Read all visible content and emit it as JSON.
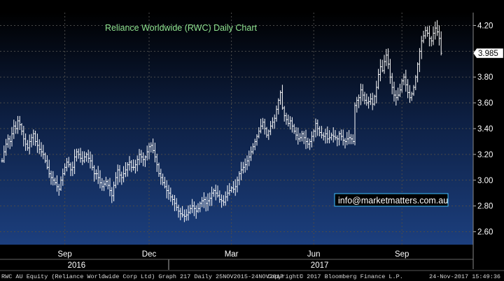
{
  "chart_data": {
    "type": "bar",
    "style": "ohlc",
    "title": "Reliance Worldwide (RWC) Daily Chart",
    "title_color": "#8fe38f",
    "background_gradient": [
      "#000000",
      "#0d1f42",
      "#1c3f7e"
    ],
    "bar_color": "#ffffff",
    "grid": true,
    "grid_color": "#4a4a4a",
    "ylim": [
      2.5,
      4.3
    ],
    "y_ticks": [
      {
        "value": 2.6,
        "label": "2.60"
      },
      {
        "value": 2.8,
        "label": "2.80"
      },
      {
        "value": 3.0,
        "label": "3.00"
      },
      {
        "value": 3.2,
        "label": "3.20"
      },
      {
        "value": 3.4,
        "label": "3.40"
      },
      {
        "value": 3.6,
        "label": "3.60"
      },
      {
        "value": 3.8,
        "label": "3.80"
      },
      {
        "value": 4.0,
        "label": "4.00"
      },
      {
        "value": 4.2,
        "label": "4.20"
      }
    ],
    "last_price": {
      "value": 3.985,
      "label": "3.985"
    },
    "months": [
      {
        "label": "Sep",
        "index": 32
      },
      {
        "label": "Dec",
        "index": 75
      },
      {
        "label": "Mar",
        "index": 117
      },
      {
        "label": "Jun",
        "index": 159
      },
      {
        "label": "Sep",
        "index": 204
      }
    ],
    "years": [
      {
        "label": "2016",
        "index": 38
      },
      {
        "label": "2017",
        "index": 162
      }
    ],
    "year_dividers": [
      85
    ],
    "annotation": "info@marketmatters.com.au",
    "annotation_color": "#ffffff",
    "annotation_border": "#40c0ff",
    "closes": [
      3.15,
      3.22,
      3.28,
      3.32,
      3.3,
      3.36,
      3.42,
      3.4,
      3.46,
      3.43,
      3.38,
      3.32,
      3.28,
      3.25,
      3.3,
      3.33,
      3.36,
      3.3,
      3.27,
      3.24,
      3.22,
      3.2,
      3.15,
      3.1,
      3.05,
      3.02,
      3.0,
      2.98,
      2.95,
      2.93,
      3.0,
      3.05,
      3.1,
      3.14,
      3.12,
      3.08,
      3.1,
      3.18,
      3.22,
      3.2,
      3.17,
      3.15,
      3.18,
      3.2,
      3.17,
      3.15,
      3.1,
      3.05,
      3.05,
      3.02,
      2.98,
      2.95,
      2.97,
      2.99,
      2.96,
      2.92,
      2.88,
      2.96,
      3.02,
      3.08,
      3.04,
      3.02,
      3.05,
      3.08,
      3.12,
      3.14,
      3.1,
      3.1,
      3.12,
      3.16,
      3.2,
      3.18,
      3.16,
      3.18,
      3.22,
      3.26,
      3.27,
      3.23,
      3.18,
      3.12,
      3.05,
      3.02,
      2.98,
      2.95,
      2.92,
      2.9,
      2.87,
      2.85,
      2.82,
      2.79,
      2.76,
      2.74,
      2.73,
      2.72,
      2.73,
      2.75,
      2.78,
      2.8,
      2.78,
      2.76,
      2.78,
      2.82,
      2.84,
      2.85,
      2.82,
      2.84,
      2.86,
      2.9,
      2.92,
      2.9,
      2.88,
      2.85,
      2.84,
      2.83,
      2.87,
      2.9,
      2.92,
      2.94,
      2.93,
      2.95,
      3.0,
      3.05,
      3.08,
      3.1,
      3.12,
      3.15,
      3.18,
      3.22,
      3.26,
      3.3,
      3.34,
      3.38,
      3.42,
      3.45,
      3.4,
      3.35,
      3.38,
      3.42,
      3.45,
      3.48,
      3.55,
      3.62,
      3.68,
      3.56,
      3.5,
      3.47,
      3.44,
      3.46,
      3.42,
      3.38,
      3.35,
      3.32,
      3.33,
      3.36,
      3.33,
      3.3,
      3.28,
      3.3,
      3.34,
      3.38,
      3.44,
      3.4,
      3.37,
      3.35,
      3.34,
      3.36,
      3.32,
      3.33,
      3.35,
      3.34,
      3.33,
      3.32,
      3.36,
      3.34,
      3.31,
      3.3,
      3.32,
      3.33,
      3.32,
      3.3,
      3.58,
      3.62,
      3.64,
      3.7,
      3.66,
      3.62,
      3.6,
      3.61,
      3.63,
      3.59,
      3.65,
      3.72,
      3.82,
      3.88,
      3.85,
      3.92,
      3.97,
      3.9,
      3.8,
      3.72,
      3.66,
      3.64,
      3.66,
      3.7,
      3.77,
      3.8,
      3.74,
      3.68,
      3.64,
      3.67,
      3.72,
      3.8,
      3.9,
      4.0,
      4.08,
      4.12,
      4.16,
      4.14,
      4.1,
      4.08,
      4.14,
      4.18,
      4.15,
      4.1,
      3.985
    ]
  },
  "footer": {
    "left": "RWC AU Equity (Reliance Worldwide Corp Ltd) Graph 217  Daily 25NOV2015-24NOV2017",
    "center": "Copyright© 2017 Bloomberg Finance L.P.",
    "right": "24-Nov-2017 15:49:36"
  }
}
